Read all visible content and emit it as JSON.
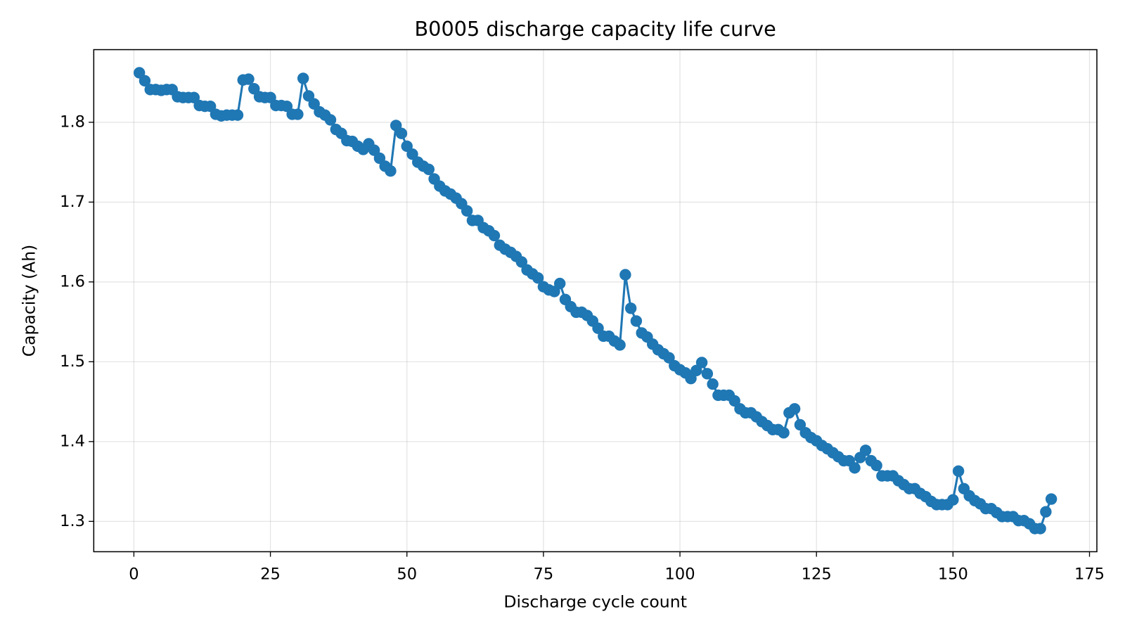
{
  "chart_data": {
    "type": "line",
    "title": "B0005 discharge capacity life curve",
    "xlabel": "Discharge cycle count",
    "ylabel": "Capacity (Ah)",
    "color": "#1f77b4",
    "marker": "o",
    "grid": true,
    "xlim": [
      -7.35,
      176.35
    ],
    "ylim": [
      1.262,
      1.891
    ],
    "xticks": [
      0,
      25,
      50,
      75,
      100,
      125,
      150,
      175
    ],
    "yticks": [
      1.3,
      1.4,
      1.5,
      1.6,
      1.7,
      1.8
    ],
    "x": [
      1,
      2,
      3,
      4,
      5,
      6,
      7,
      8,
      9,
      10,
      11,
      12,
      13,
      14,
      15,
      16,
      17,
      18,
      19,
      20,
      21,
      22,
      23,
      24,
      25,
      26,
      27,
      28,
      29,
      30,
      31,
      32,
      33,
      34,
      35,
      36,
      37,
      38,
      39,
      40,
      41,
      42,
      43,
      44,
      45,
      46,
      47,
      48,
      49,
      50,
      51,
      52,
      53,
      54,
      55,
      56,
      57,
      58,
      59,
      60,
      61,
      62,
      63,
      64,
      65,
      66,
      67,
      68,
      69,
      70,
      71,
      72,
      73,
      74,
      75,
      76,
      77,
      78,
      79,
      80,
      81,
      82,
      83,
      84,
      85,
      86,
      87,
      88,
      89,
      90,
      91,
      92,
      93,
      94,
      95,
      96,
      97,
      98,
      99,
      100,
      101,
      102,
      103,
      104,
      105,
      106,
      107,
      108,
      109,
      110,
      111,
      112,
      113,
      114,
      115,
      116,
      117,
      118,
      119,
      120,
      121,
      122,
      123,
      124,
      125,
      126,
      127,
      128,
      129,
      130,
      131,
      132,
      133,
      134,
      135,
      136,
      137,
      138,
      139,
      140,
      141,
      142,
      143,
      144,
      145,
      146,
      147,
      148,
      149,
      150,
      151,
      152,
      153,
      154,
      155,
      156,
      157,
      158,
      159,
      160,
      161,
      162,
      163,
      164,
      165,
      166,
      167,
      168
    ],
    "values": [
      1.862,
      1.852,
      1.841,
      1.841,
      1.84,
      1.841,
      1.841,
      1.832,
      1.831,
      1.831,
      1.831,
      1.821,
      1.82,
      1.82,
      1.81,
      1.808,
      1.809,
      1.809,
      1.809,
      1.853,
      1.854,
      1.842,
      1.832,
      1.831,
      1.831,
      1.821,
      1.821,
      1.82,
      1.81,
      1.81,
      1.855,
      1.833,
      1.823,
      1.813,
      1.809,
      1.803,
      1.791,
      1.786,
      1.777,
      1.776,
      1.77,
      1.766,
      1.773,
      1.765,
      1.755,
      1.745,
      1.739,
      1.796,
      1.786,
      1.77,
      1.76,
      1.75,
      1.745,
      1.741,
      1.729,
      1.72,
      1.714,
      1.71,
      1.705,
      1.698,
      1.689,
      1.677,
      1.677,
      1.668,
      1.664,
      1.658,
      1.646,
      1.641,
      1.637,
      1.632,
      1.625,
      1.615,
      1.61,
      1.605,
      1.594,
      1.59,
      1.588,
      1.598,
      1.578,
      1.569,
      1.562,
      1.562,
      1.558,
      1.551,
      1.542,
      1.532,
      1.532,
      1.526,
      1.521,
      1.609,
      1.567,
      1.551,
      1.536,
      1.531,
      1.522,
      1.515,
      1.51,
      1.505,
      1.495,
      1.49,
      1.486,
      1.479,
      1.489,
      1.499,
      1.485,
      1.472,
      1.458,
      1.458,
      1.458,
      1.451,
      1.441,
      1.436,
      1.436,
      1.431,
      1.425,
      1.42,
      1.415,
      1.415,
      1.411,
      1.436,
      1.441,
      1.421,
      1.411,
      1.405,
      1.401,
      1.395,
      1.391,
      1.386,
      1.381,
      1.376,
      1.376,
      1.367,
      1.38,
      1.389,
      1.376,
      1.37,
      1.357,
      1.357,
      1.357,
      1.351,
      1.346,
      1.341,
      1.341,
      1.335,
      1.331,
      1.325,
      1.321,
      1.321,
      1.321,
      1.327,
      1.363,
      1.341,
      1.332,
      1.326,
      1.322,
      1.316,
      1.316,
      1.311,
      1.306,
      1.306,
      1.306,
      1.301,
      1.301,
      1.297,
      1.291,
      1.291,
      1.312,
      1.328
    ]
  }
}
